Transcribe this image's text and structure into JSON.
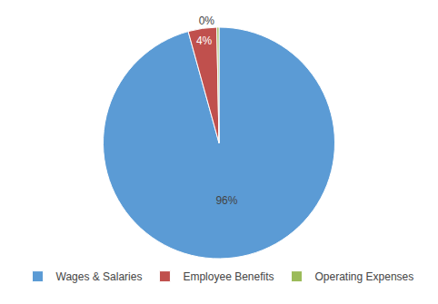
{
  "chart_data": {
    "type": "pie",
    "categories": [
      "Wages & Salaries",
      "Employee Benefits",
      "Operating Expenses"
    ],
    "values": [
      96,
      4,
      0.3
    ],
    "value_labels": [
      "96%",
      "4%",
      "0%"
    ],
    "colors": [
      "#5b9bd5",
      "#c0504d",
      "#9bbb59"
    ],
    "data_labels": true,
    "legend": "bottom"
  }
}
